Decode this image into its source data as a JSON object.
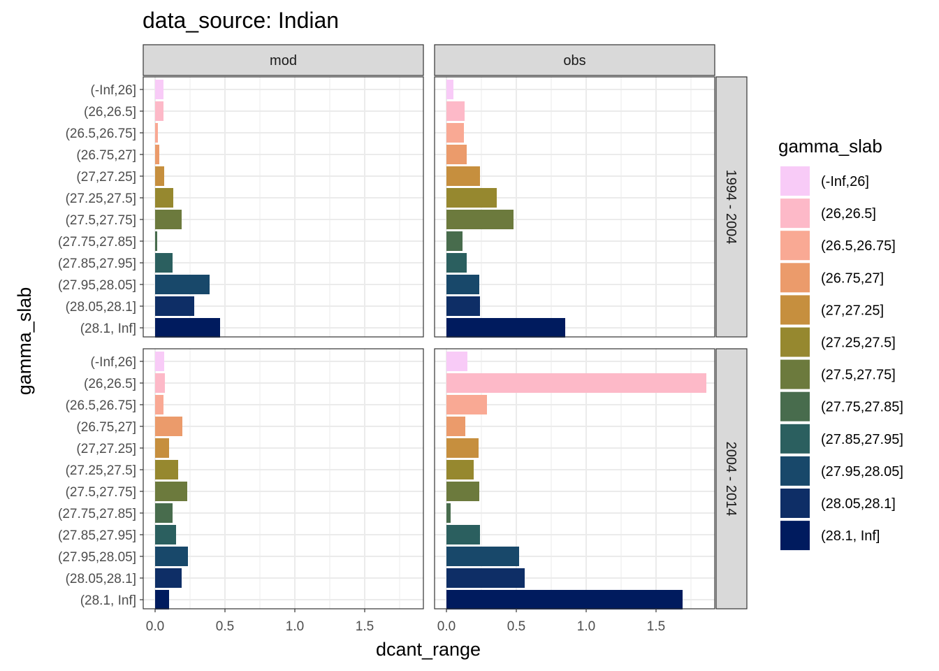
{
  "title": "data_source: Indian",
  "chart_data": {
    "type": "bar",
    "orientation": "horizontal",
    "title": "data_source: Indian",
    "xlabel": "dcant_range",
    "ylabel": "gamma_slab",
    "xlim": [
      0,
      1.9
    ],
    "x_ticks": [
      0.0,
      0.5,
      1.0,
      1.5
    ],
    "x_tick_labels": [
      "0.0",
      "0.5",
      "1.0",
      "1.5"
    ],
    "grid": true,
    "legend_position": "right",
    "legend_title": "gamma_slab",
    "columns": [
      "mod",
      "obs"
    ],
    "rows": [
      "1994 - 2004",
      "2004 - 2014"
    ],
    "categories": [
      "(-Inf,26]",
      "(26,26.5]",
      "(26.5,26.75]",
      "(26.75,27]",
      "(27,27.25]",
      "(27.25,27.5]",
      "(27.5,27.75]",
      "(27.75,27.85]",
      "(27.85,27.95]",
      "(27.95,28.05]",
      "(28.05,28.1]",
      "(28.1, Inf]"
    ],
    "colors": [
      "#F8CBF7",
      "#FDB9C8",
      "#F9A994",
      "#EB9B6B",
      "#C68F3E",
      "#96882F",
      "#6C7A3D",
      "#486C4D",
      "#2B5F5F",
      "#18486A",
      "#0E2E66",
      "#001B5E"
    ],
    "panels": [
      {
        "row": "1994 - 2004",
        "column": "mod",
        "values": [
          0.06,
          0.06,
          0.02,
          0.03,
          0.065,
          0.13,
          0.19,
          0.015,
          0.125,
          0.39,
          0.28,
          0.465
        ]
      },
      {
        "row": "1994 - 2004",
        "column": "obs",
        "values": [
          0.05,
          0.13,
          0.125,
          0.145,
          0.24,
          0.36,
          0.48,
          0.115,
          0.145,
          0.235,
          0.24,
          0.85
        ]
      },
      {
        "row": "2004 - 2014",
        "column": "mod",
        "values": [
          0.065,
          0.07,
          0.06,
          0.195,
          0.1,
          0.165,
          0.23,
          0.125,
          0.15,
          0.235,
          0.19,
          0.1
        ]
      },
      {
        "row": "2004 - 2014",
        "column": "obs",
        "values": [
          0.15,
          1.86,
          0.29,
          0.135,
          0.23,
          0.195,
          0.235,
          0.03,
          0.24,
          0.52,
          0.56,
          1.69
        ]
      }
    ]
  }
}
